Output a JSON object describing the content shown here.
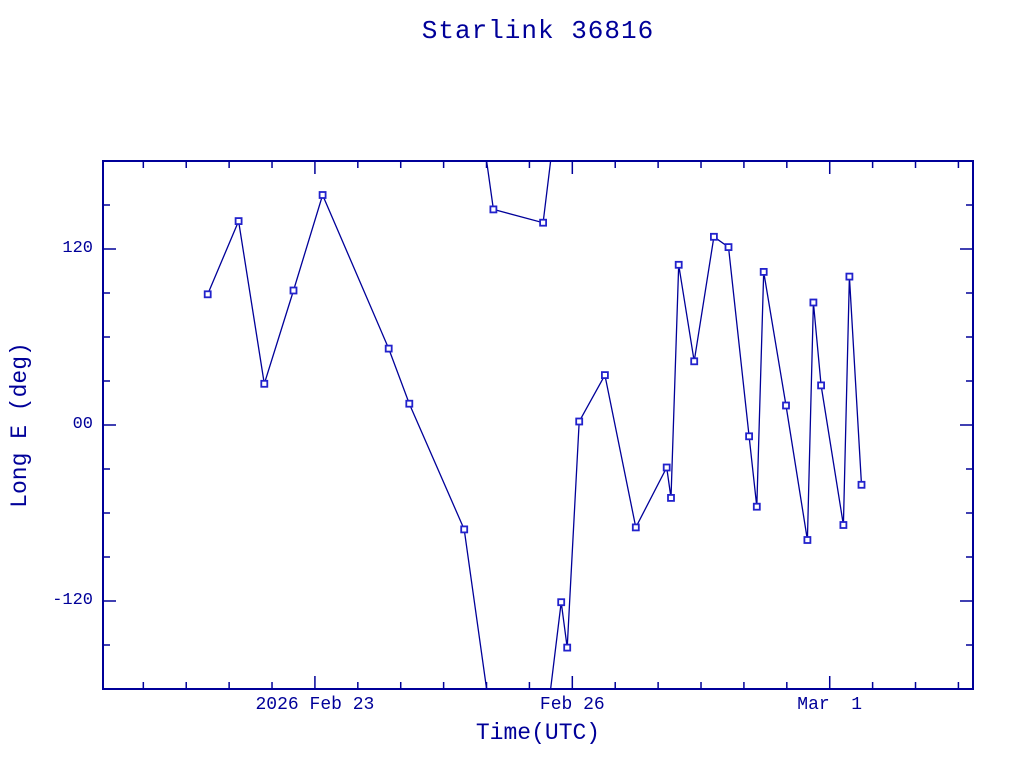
{
  "chart_data": {
    "type": "line",
    "title": "Starlink 36816",
    "xlabel": "Time(UTC)",
    "ylabel": "Long E (deg)",
    "x_unit": "day number of 2026 February (Mar 1 = 29, fractional = time of day UTC)",
    "xlim": [
      20.53,
      30.67
    ],
    "ylim": [
      -180,
      180
    ],
    "grid": false,
    "legend": "none",
    "wrap_longitude_at": 180,
    "x_major_ticks": [
      {
        "x": 23,
        "label": "2026 Feb 23"
      },
      {
        "x": 26,
        "label": "Feb 26"
      },
      {
        "x": 29,
        "label": "Mar  1"
      }
    ],
    "x_minor_step": 0.5,
    "y_major_ticks": [
      {
        "y": 120,
        "label": "120"
      },
      {
        "y": 0,
        "label": "00"
      },
      {
        "y": -120,
        "label": "-120"
      }
    ],
    "y_minor_step": 30,
    "columns": [
      "day_utc",
      "long_e_deg"
    ],
    "series": [
      {
        "name": "Starlink 36816 east longitude",
        "marker": "open-square",
        "points": [
          [
            21.75,
            89.1
          ],
          [
            22.11,
            139.0
          ],
          [
            22.41,
            28.1
          ],
          [
            22.75,
            91.7
          ],
          [
            23.09,
            156.8
          ],
          [
            23.86,
            52.1
          ],
          [
            24.1,
            14.5
          ],
          [
            24.74,
            -71.2
          ],
          [
            25.08,
            147.0
          ],
          [
            25.66,
            137.9
          ],
          [
            25.87,
            -120.8
          ],
          [
            25.94,
            -151.8
          ],
          [
            26.08,
            2.4
          ],
          [
            26.38,
            34.0
          ],
          [
            26.74,
            -69.8
          ],
          [
            27.1,
            -29.0
          ],
          [
            27.15,
            -49.7
          ],
          [
            27.24,
            109.2
          ],
          [
            27.42,
            43.4
          ],
          [
            27.65,
            128.3
          ],
          [
            27.82,
            121.3
          ],
          [
            28.06,
            -7.7
          ],
          [
            28.15,
            -55.7
          ],
          [
            28.23,
            104.4
          ],
          [
            28.49,
            13.3
          ],
          [
            28.74,
            -78.4
          ],
          [
            28.81,
            83.5
          ],
          [
            28.9,
            27.0
          ],
          [
            29.16,
            -68.2
          ],
          [
            29.23,
            101.2
          ],
          [
            29.37,
            -40.8
          ]
        ]
      }
    ],
    "colors": {
      "background": "#ffffff",
      "axis": "#000099",
      "text": "#000099",
      "line": "#000099",
      "marker": "#2222cc"
    }
  }
}
